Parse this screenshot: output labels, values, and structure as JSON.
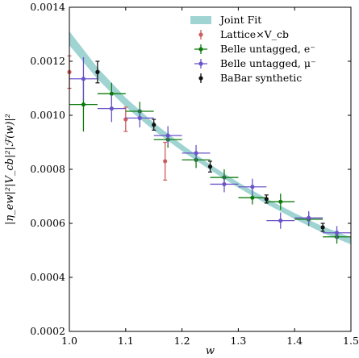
{
  "chart_data": {
    "type": "scatter",
    "xlabel": "w",
    "ylabel": "|η_ew|²|V_cb|²|ℱ(w)|²",
    "xlim": [
      1.0,
      1.5
    ],
    "ylim": [
      0.0002,
      0.0014
    ],
    "x_ticks": [
      "1.0",
      "1.1",
      "1.2",
      "1.3",
      "1.4",
      "1.5"
    ],
    "y_ticks": [
      "0.0002",
      "0.0004",
      "0.0006",
      "0.0008",
      "0.0010",
      "0.0012",
      "0.0014"
    ],
    "legend_position": "top-right",
    "band": {
      "name": "Joint Fit",
      "color": "#9fd4d2",
      "x": [
        1.0,
        1.05,
        1.1,
        1.15,
        1.2,
        1.25,
        1.3,
        1.35,
        1.4,
        1.45,
        1.5
      ],
      "y": [
        0.001285,
        0.001155,
        0.001048,
        0.000958,
        0.00088,
        0.000808,
        0.000742,
        0.000682,
        0.000627,
        0.000577,
        0.000535
      ],
      "half_width": [
        2.6e-05,
        2.1e-05,
        1.7e-05,
        1.4e-05,
        1.2e-05,
        1e-05,
        1e-05,
        1e-05,
        1.1e-05,
        1.2e-05,
        1.3e-05
      ]
    },
    "series": [
      {
        "name": "Lattice×V_cb",
        "color": "#cf5c5c",
        "points": [
          {
            "x": 1.0,
            "y": 0.00116,
            "yerr": 6e-05,
            "xerr": 0
          },
          {
            "x": 1.1,
            "y": 0.000985,
            "yerr": 4.5e-05,
            "xerr": 0
          },
          {
            "x": 1.17,
            "y": 0.00083,
            "yerr": 7e-05,
            "xerr": 0
          }
        ]
      },
      {
        "name": "Belle untagged, e⁻",
        "color": "#0f7a0f",
        "points": [
          {
            "x": 1.025,
            "y": 0.00104,
            "yerr": 0.0001,
            "xerr": 0.025
          },
          {
            "x": 1.075,
            "y": 0.00108,
            "yerr": 4e-05,
            "xerr": 0.025
          },
          {
            "x": 1.125,
            "y": 0.001015,
            "yerr": 3.5e-05,
            "xerr": 0.025
          },
          {
            "x": 1.175,
            "y": 0.00091,
            "yerr": 3e-05,
            "xerr": 0.025
          },
          {
            "x": 1.225,
            "y": 0.000835,
            "yerr": 3e-05,
            "xerr": 0.025
          },
          {
            "x": 1.275,
            "y": 0.00077,
            "yerr": 3e-05,
            "xerr": 0.025
          },
          {
            "x": 1.325,
            "y": 0.000695,
            "yerr": 2.5e-05,
            "xerr": 0.025
          },
          {
            "x": 1.375,
            "y": 0.00068,
            "yerr": 3e-05,
            "xerr": 0.025
          },
          {
            "x": 1.425,
            "y": 0.000615,
            "yerr": 2.5e-05,
            "xerr": 0.025
          },
          {
            "x": 1.475,
            "y": 0.00055,
            "yerr": 2.5e-05,
            "xerr": 0.025
          }
        ]
      },
      {
        "name": "Belle untagged, μ⁻",
        "color": "#6a55c8",
        "points": [
          {
            "x": 1.025,
            "y": 0.001135,
            "yerr": 8e-05,
            "xerr": 0.025
          },
          {
            "x": 1.075,
            "y": 0.001025,
            "yerr": 5e-05,
            "xerr": 0.025
          },
          {
            "x": 1.125,
            "y": 0.00099,
            "yerr": 3.5e-05,
            "xerr": 0.025
          },
          {
            "x": 1.175,
            "y": 0.000925,
            "yerr": 3.5e-05,
            "xerr": 0.025
          },
          {
            "x": 1.225,
            "y": 0.00086,
            "yerr": 3e-05,
            "xerr": 0.025
          },
          {
            "x": 1.275,
            "y": 0.000745,
            "yerr": 3e-05,
            "xerr": 0.025
          },
          {
            "x": 1.325,
            "y": 0.000735,
            "yerr": 3e-05,
            "xerr": 0.025
          },
          {
            "x": 1.375,
            "y": 0.00061,
            "yerr": 3e-05,
            "xerr": 0.025
          },
          {
            "x": 1.425,
            "y": 0.00062,
            "yerr": 2.5e-05,
            "xerr": 0.025
          },
          {
            "x": 1.475,
            "y": 0.000565,
            "yerr": 2.5e-05,
            "xerr": 0.025
          }
        ]
      },
      {
        "name": "BaBar synthetic",
        "color": "#111111",
        "points": [
          {
            "x": 1.05,
            "y": 0.00116,
            "yerr": 4e-05,
            "xerr": 0
          },
          {
            "x": 1.15,
            "y": 0.000965,
            "yerr": 2e-05,
            "xerr": 0
          },
          {
            "x": 1.25,
            "y": 0.00081,
            "yerr": 2e-05,
            "xerr": 0
          },
          {
            "x": 1.35,
            "y": 0.00069,
            "yerr": 1.5e-05,
            "xerr": 0
          },
          {
            "x": 1.45,
            "y": 0.000585,
            "yerr": 1.5e-05,
            "xerr": 0
          }
        ]
      }
    ]
  }
}
